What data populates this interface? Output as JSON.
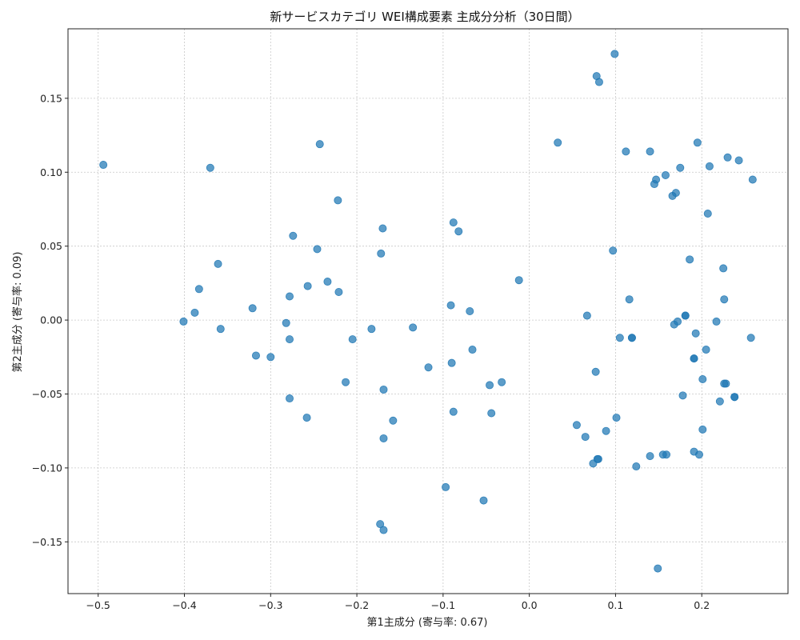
{
  "chart_data": {
    "type": "scatter",
    "title": "新サービスカテゴリ WEI構成要素 主成分分析（30日間）",
    "xlabel": "第1主成分 (寄与率: 0.67)",
    "ylabel": "第2主成分 (寄与率: 0.09)",
    "xlim": [
      -0.535,
      0.3
    ],
    "ylim": [
      -0.185,
      0.197
    ],
    "xticks": [
      -0.5,
      -0.4,
      -0.3,
      -0.2,
      -0.1,
      0.0,
      0.1,
      0.2
    ],
    "xtick_labels": [
      "−0.5",
      "−0.4",
      "−0.3",
      "−0.2",
      "−0.1",
      "0.0",
      "0.1",
      "0.2"
    ],
    "yticks": [
      -0.15,
      -0.1,
      -0.05,
      0.0,
      0.05,
      0.1,
      0.15
    ],
    "ytick_labels": [
      "−0.15",
      "−0.10",
      "−0.05",
      "0.00",
      "0.05",
      "0.10",
      "0.15"
    ],
    "grid": true,
    "marker_color": "#1f77b4",
    "points": [
      [
        -0.494,
        0.105
      ],
      [
        -0.37,
        0.103
      ],
      [
        -0.243,
        0.119
      ],
      [
        -0.222,
        0.081
      ],
      [
        -0.274,
        0.057
      ],
      [
        -0.246,
        0.048
      ],
      [
        -0.17,
        0.062
      ],
      [
        -0.172,
        0.045
      ],
      [
        -0.088,
        0.066
      ],
      [
        -0.082,
        0.06
      ],
      [
        -0.361,
        0.038
      ],
      [
        -0.383,
        0.021
      ],
      [
        -0.257,
        0.023
      ],
      [
        -0.234,
        0.026
      ],
      [
        -0.221,
        0.019
      ],
      [
        -0.278,
        0.016
      ],
      [
        -0.321,
        0.008
      ],
      [
        -0.388,
        0.005
      ],
      [
        -0.401,
        -0.001
      ],
      [
        -0.358,
        -0.006
      ],
      [
        -0.282,
        -0.002
      ],
      [
        -0.278,
        -0.013
      ],
      [
        -0.205,
        -0.013
      ],
      [
        -0.183,
        -0.006
      ],
      [
        -0.135,
        -0.005
      ],
      [
        -0.091,
        0.01
      ],
      [
        -0.069,
        0.006
      ],
      [
        -0.012,
        0.027
      ],
      [
        -0.317,
        -0.024
      ],
      [
        -0.3,
        -0.025
      ],
      [
        -0.278,
        -0.053
      ],
      [
        -0.213,
        -0.042
      ],
      [
        -0.169,
        -0.047
      ],
      [
        -0.258,
        -0.066
      ],
      [
        -0.158,
        -0.068
      ],
      [
        -0.169,
        -0.08
      ],
      [
        -0.117,
        -0.032
      ],
      [
        -0.09,
        -0.029
      ],
      [
        -0.066,
        -0.02
      ],
      [
        -0.032,
        -0.042
      ],
      [
        -0.046,
        -0.044
      ],
      [
        -0.044,
        -0.063
      ],
      [
        -0.088,
        -0.062
      ],
      [
        -0.097,
        -0.113
      ],
      [
        -0.053,
        -0.122
      ],
      [
        -0.173,
        -0.138
      ],
      [
        -0.169,
        -0.142
      ],
      [
        0.033,
        0.12
      ],
      [
        0.078,
        0.165
      ],
      [
        0.081,
        0.161
      ],
      [
        0.099,
        0.18
      ],
      [
        0.112,
        0.114
      ],
      [
        0.14,
        0.114
      ],
      [
        0.195,
        0.12
      ],
      [
        0.175,
        0.103
      ],
      [
        0.158,
        0.098
      ],
      [
        0.147,
        0.095
      ],
      [
        0.145,
        0.092
      ],
      [
        0.17,
        0.086
      ],
      [
        0.166,
        0.084
      ],
      [
        0.209,
        0.104
      ],
      [
        0.23,
        0.11
      ],
      [
        0.243,
        0.108
      ],
      [
        0.259,
        0.095
      ],
      [
        0.207,
        0.072
      ],
      [
        0.186,
        0.041
      ],
      [
        0.225,
        0.035
      ],
      [
        0.097,
        0.047
      ],
      [
        0.116,
        0.014
      ],
      [
        0.226,
        0.014
      ],
      [
        0.067,
        0.003
      ],
      [
        0.181,
        0.003
      ],
      [
        0.181,
        0.003
      ],
      [
        0.172,
        -0.001
      ],
      [
        0.168,
        -0.003
      ],
      [
        0.217,
        -0.001
      ],
      [
        0.193,
        -0.009
      ],
      [
        0.105,
        -0.012
      ],
      [
        0.119,
        -0.012
      ],
      [
        0.119,
        -0.012
      ],
      [
        0.257,
        -0.012
      ],
      [
        0.205,
        -0.02
      ],
      [
        0.191,
        -0.026
      ],
      [
        0.191,
        -0.026
      ],
      [
        0.077,
        -0.035
      ],
      [
        0.201,
        -0.04
      ],
      [
        0.228,
        -0.043
      ],
      [
        0.226,
        -0.043
      ],
      [
        0.238,
        -0.052
      ],
      [
        0.238,
        -0.052
      ],
      [
        0.178,
        -0.051
      ],
      [
        0.221,
        -0.055
      ],
      [
        0.055,
        -0.071
      ],
      [
        0.101,
        -0.066
      ],
      [
        0.065,
        -0.079
      ],
      [
        0.089,
        -0.075
      ],
      [
        0.201,
        -0.074
      ],
      [
        0.191,
        -0.089
      ],
      [
        0.197,
        -0.091
      ],
      [
        0.159,
        -0.091
      ],
      [
        0.155,
        -0.091
      ],
      [
        0.14,
        -0.092
      ],
      [
        0.08,
        -0.094
      ],
      [
        0.079,
        -0.094
      ],
      [
        0.074,
        -0.097
      ],
      [
        0.124,
        -0.099
      ],
      [
        0.149,
        -0.168
      ]
    ]
  }
}
